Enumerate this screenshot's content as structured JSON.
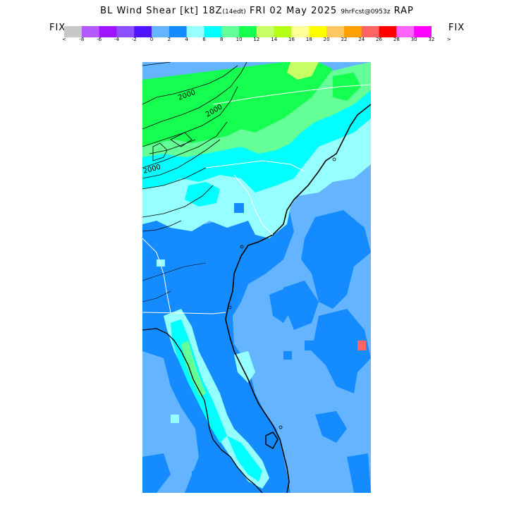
{
  "title": {
    "main": "BL Wind Shear [kt] 18Z",
    "local_time": "(14edt)",
    "date": "FRI 02 May 2025",
    "forecast": "9hrFcst@0953z",
    "model": "RAP"
  },
  "fix_left": "FIX",
  "fix_right": "FIX",
  "colorbar": {
    "colors": [
      "#c8c8c8",
      "#b45aff",
      "#a014ff",
      "#8c50ff",
      "#5014ff",
      "#64b4ff",
      "#148cff",
      "#96ffff",
      "#00ffff",
      "#64ff96",
      "#14ff50",
      "#c8ff64",
      "#b4ff14",
      "#ffff96",
      "#ffff00",
      "#ffc864",
      "#ffa000",
      "#ff6464",
      "#ff0000",
      "#ff64ff",
      "#ff00ff"
    ],
    "labels": [
      "<",
      "-8",
      "-6",
      "-4",
      "-2",
      "0",
      "2",
      "4",
      "6",
      "8",
      "10",
      "12",
      "14",
      "16",
      "18",
      "20",
      "22",
      "24",
      "26",
      "28",
      "30",
      "32",
      ">"
    ]
  },
  "contour_labels": [
    "2000",
    "2000",
    "2000"
  ],
  "palette": {
    "ocean": "#64b4ff",
    "mid_blue": "#148cff",
    "light_cyan": "#96ffff",
    "cyan": "#00ffff",
    "light_green": "#64ff96",
    "green": "#14ff50",
    "yellow_green": "#c8ff64"
  }
}
